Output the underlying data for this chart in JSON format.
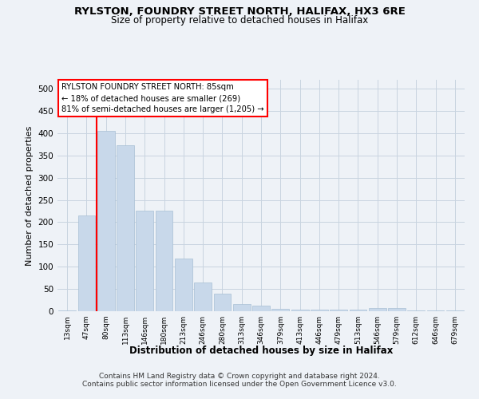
{
  "title1": "RYLSTON, FOUNDRY STREET NORTH, HALIFAX, HX3 6RE",
  "title2": "Size of property relative to detached houses in Halifax",
  "xlabel": "Distribution of detached houses by size in Halifax",
  "ylabel": "Number of detached properties",
  "bar_labels": [
    "13sqm",
    "47sqm",
    "80sqm",
    "113sqm",
    "146sqm",
    "180sqm",
    "213sqm",
    "246sqm",
    "280sqm",
    "313sqm",
    "346sqm",
    "379sqm",
    "413sqm",
    "446sqm",
    "479sqm",
    "513sqm",
    "546sqm",
    "579sqm",
    "612sqm",
    "646sqm",
    "679sqm"
  ],
  "bar_values": [
    2,
    215,
    405,
    373,
    226,
    226,
    119,
    65,
    40,
    17,
    12,
    6,
    4,
    4,
    4,
    4,
    7,
    7,
    2,
    1,
    2
  ],
  "bar_color": "#c8d8ea",
  "bar_edgecolor": "#a8c0d4",
  "redline_color": "red",
  "property_label": "RYLSTON FOUNDRY STREET NORTH: 85sqm",
  "annotation_line1": "← 18% of detached houses are smaller (269)",
  "annotation_line2": "81% of semi-detached houses are larger (1,205) →",
  "annotation_box_facecolor": "white",
  "annotation_box_edgecolor": "red",
  "ylim": [
    0,
    520
  ],
  "yticks": [
    0,
    50,
    100,
    150,
    200,
    250,
    300,
    350,
    400,
    450,
    500
  ],
  "grid_color": "#c8d4e0",
  "footer1": "Contains HM Land Registry data © Crown copyright and database right 2024.",
  "footer2": "Contains public sector information licensed under the Open Government Licence v3.0.",
  "bg_color": "#eef2f7"
}
